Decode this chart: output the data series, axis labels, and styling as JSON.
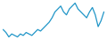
{
  "values": [
    30,
    28,
    25,
    27,
    26,
    25,
    27,
    26,
    28,
    27,
    26,
    28,
    30,
    29,
    31,
    33,
    35,
    38,
    42,
    44,
    46,
    42,
    40,
    44,
    46,
    48,
    44,
    42,
    40,
    38,
    42,
    45,
    40,
    32,
    36,
    42
  ],
  "line_color": "#2196c8",
  "background_color": "#ffffff",
  "linewidth": 0.9
}
